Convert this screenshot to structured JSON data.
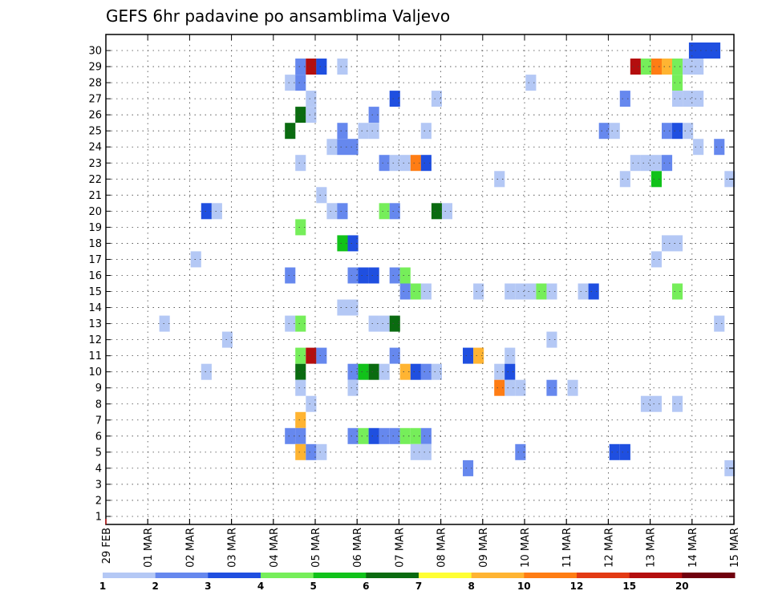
{
  "chart_data": {
    "type": "heatmap",
    "title": "GEFS 6hr padavine po ansamblima Valjevo",
    "x_tick_labels": [
      "29 FEB",
      "01 MAR",
      "02 MAR",
      "03 MAR",
      "04 MAR",
      "05 MAR",
      "06 MAR",
      "07 MAR",
      "08 MAR",
      "09 MAR",
      "10 MAR",
      "11 MAR",
      "12 MAR",
      "13 MAR",
      "14 MAR",
      "15 MAR"
    ],
    "x_range_days": [
      0,
      15
    ],
    "y_tick_labels": [
      "1",
      "2",
      "3",
      "4",
      "5",
      "6",
      "7",
      "8",
      "9",
      "10",
      "11",
      "12",
      "13",
      "14",
      "15",
      "16",
      "17",
      "18",
      "19",
      "20",
      "21",
      "22",
      "23",
      "24",
      "25",
      "26",
      "27",
      "28",
      "29",
      "30"
    ],
    "y_range": [
      0,
      30
    ],
    "grid": true,
    "colorbar": {
      "levels": [
        "1",
        "2",
        "3",
        "4",
        "5",
        "6",
        "7",
        "8",
        "10",
        "12",
        "15",
        "20"
      ],
      "colors": [
        "#b4c8f5",
        "#6688ee",
        "#1f4fe0",
        "#76ee5a",
        "#11c21a",
        "#0a6b10",
        "#ffff33",
        "#ffb432",
        "#ff7d14",
        "#e33a14",
        "#b40e0e",
        "#70000e"
      ]
    },
    "cells": [
      {
        "m": 30,
        "d": 14.05,
        "c": 3
      },
      {
        "m": 30,
        "d": 14.3,
        "c": 3
      },
      {
        "m": 30,
        "d": 14.55,
        "c": 3
      },
      {
        "m": 29,
        "d": 4.65,
        "c": 2
      },
      {
        "m": 29,
        "d": 4.9,
        "c": 11
      },
      {
        "m": 29,
        "d": 5.15,
        "c": 3
      },
      {
        "m": 29,
        "d": 5.65,
        "c": 1
      },
      {
        "m": 29,
        "d": 12.65,
        "c": 11
      },
      {
        "m": 29,
        "d": 12.9,
        "c": 4
      },
      {
        "m": 29,
        "d": 13.15,
        "c": 9
      },
      {
        "m": 29,
        "d": 13.4,
        "c": 8
      },
      {
        "m": 29,
        "d": 13.65,
        "c": 4
      },
      {
        "m": 29,
        "d": 13.9,
        "c": 1
      },
      {
        "m": 29,
        "d": 14.15,
        "c": 1
      },
      {
        "m": 28,
        "d": 4.4,
        "c": 1
      },
      {
        "m": 28,
        "d": 4.65,
        "c": 2
      },
      {
        "m": 28,
        "d": 10.15,
        "c": 1
      },
      {
        "m": 28,
        "d": 13.65,
        "c": 4
      },
      {
        "m": 27,
        "d": 4.9,
        "c": 1
      },
      {
        "m": 27,
        "d": 6.9,
        "c": 3
      },
      {
        "m": 27,
        "d": 7.9,
        "c": 1
      },
      {
        "m": 27,
        "d": 12.4,
        "c": 2
      },
      {
        "m": 27,
        "d": 13.65,
        "c": 1
      },
      {
        "m": 27,
        "d": 13.9,
        "c": 1
      },
      {
        "m": 27,
        "d": 14.15,
        "c": 1
      },
      {
        "m": 26,
        "d": 4.65,
        "c": 6
      },
      {
        "m": 26,
        "d": 4.9,
        "c": 1
      },
      {
        "m": 26,
        "d": 6.4,
        "c": 2
      },
      {
        "m": 25,
        "d": 4.4,
        "c": 6
      },
      {
        "m": 25,
        "d": 5.65,
        "c": 2
      },
      {
        "m": 25,
        "d": 6.15,
        "c": 1
      },
      {
        "m": 25,
        "d": 6.4,
        "c": 1
      },
      {
        "m": 25,
        "d": 7.65,
        "c": 1
      },
      {
        "m": 25,
        "d": 11.9,
        "c": 2
      },
      {
        "m": 25,
        "d": 12.15,
        "c": 1
      },
      {
        "m": 25,
        "d": 13.4,
        "c": 2
      },
      {
        "m": 25,
        "d": 13.65,
        "c": 3
      },
      {
        "m": 25,
        "d": 13.9,
        "c": 1
      },
      {
        "m": 24,
        "d": 5.4,
        "c": 1
      },
      {
        "m": 24,
        "d": 5.65,
        "c": 2
      },
      {
        "m": 24,
        "d": 5.9,
        "c": 2
      },
      {
        "m": 24,
        "d": 14.15,
        "c": 1
      },
      {
        "m": 24,
        "d": 14.65,
        "c": 2
      },
      {
        "m": 23,
        "d": 4.65,
        "c": 1
      },
      {
        "m": 23,
        "d": 6.65,
        "c": 2
      },
      {
        "m": 23,
        "d": 6.9,
        "c": 1
      },
      {
        "m": 23,
        "d": 7.15,
        "c": 1
      },
      {
        "m": 23,
        "d": 7.4,
        "c": 9
      },
      {
        "m": 23,
        "d": 7.65,
        "c": 3
      },
      {
        "m": 23,
        "d": 12.65,
        "c": 1
      },
      {
        "m": 23,
        "d": 12.9,
        "c": 1
      },
      {
        "m": 23,
        "d": 13.15,
        "c": 1
      },
      {
        "m": 23,
        "d": 13.4,
        "c": 2
      },
      {
        "m": 22,
        "d": 9.4,
        "c": 1
      },
      {
        "m": 22,
        "d": 12.4,
        "c": 1
      },
      {
        "m": 22,
        "d": 13.15,
        "c": 5
      },
      {
        "m": 22,
        "d": 14.9,
        "c": 1
      },
      {
        "m": 21,
        "d": 5.15,
        "c": 1
      },
      {
        "m": 20,
        "d": 2.4,
        "c": 3
      },
      {
        "m": 20,
        "d": 2.65,
        "c": 1
      },
      {
        "m": 20,
        "d": 5.4,
        "c": 1
      },
      {
        "m": 20,
        "d": 5.65,
        "c": 2
      },
      {
        "m": 20,
        "d": 6.65,
        "c": 4
      },
      {
        "m": 20,
        "d": 6.9,
        "c": 2
      },
      {
        "m": 20,
        "d": 7.9,
        "c": 6
      },
      {
        "m": 20,
        "d": 8.15,
        "c": 1
      },
      {
        "m": 19,
        "d": 4.65,
        "c": 4
      },
      {
        "m": 18,
        "d": 5.65,
        "c": 5
      },
      {
        "m": 18,
        "d": 5.9,
        "c": 3
      },
      {
        "m": 18,
        "d": 13.4,
        "c": 1
      },
      {
        "m": 18,
        "d": 13.65,
        "c": 1
      },
      {
        "m": 17,
        "d": 2.15,
        "c": 1
      },
      {
        "m": 17,
        "d": 13.15,
        "c": 1
      },
      {
        "m": 16,
        "d": 4.4,
        "c": 2
      },
      {
        "m": 16,
        "d": 5.9,
        "c": 2
      },
      {
        "m": 16,
        "d": 6.15,
        "c": 3
      },
      {
        "m": 16,
        "d": 6.4,
        "c": 3
      },
      {
        "m": 16,
        "d": 6.9,
        "c": 2
      },
      {
        "m": 16,
        "d": 7.15,
        "c": 4
      },
      {
        "m": 15,
        "d": 7.15,
        "c": 2
      },
      {
        "m": 15,
        "d": 7.4,
        "c": 4
      },
      {
        "m": 15,
        "d": 7.65,
        "c": 1
      },
      {
        "m": 15,
        "d": 8.9,
        "c": 1
      },
      {
        "m": 15,
        "d": 9.65,
        "c": 1
      },
      {
        "m": 15,
        "d": 9.9,
        "c": 1
      },
      {
        "m": 15,
        "d": 10.15,
        "c": 1
      },
      {
        "m": 15,
        "d": 10.4,
        "c": 4
      },
      {
        "m": 15,
        "d": 10.65,
        "c": 1
      },
      {
        "m": 15,
        "d": 11.4,
        "c": 1
      },
      {
        "m": 15,
        "d": 11.65,
        "c": 3
      },
      {
        "m": 15,
        "d": 13.65,
        "c": 4
      },
      {
        "m": 14,
        "d": 5.65,
        "c": 1
      },
      {
        "m": 14,
        "d": 5.9,
        "c": 1
      },
      {
        "m": 13,
        "d": 1.4,
        "c": 1
      },
      {
        "m": 13,
        "d": 4.4,
        "c": 1
      },
      {
        "m": 13,
        "d": 4.65,
        "c": 4
      },
      {
        "m": 13,
        "d": 6.4,
        "c": 1
      },
      {
        "m": 13,
        "d": 6.65,
        "c": 1
      },
      {
        "m": 13,
        "d": 6.9,
        "c": 6
      },
      {
        "m": 13,
        "d": 14.65,
        "c": 1
      },
      {
        "m": 12,
        "d": 2.9,
        "c": 1
      },
      {
        "m": 12,
        "d": 10.65,
        "c": 1
      },
      {
        "m": 11,
        "d": 4.65,
        "c": 4
      },
      {
        "m": 11,
        "d": 4.9,
        "c": 11
      },
      {
        "m": 11,
        "d": 5.15,
        "c": 2
      },
      {
        "m": 11,
        "d": 6.9,
        "c": 2
      },
      {
        "m": 11,
        "d": 8.65,
        "c": 3
      },
      {
        "m": 11,
        "d": 8.9,
        "c": 8
      },
      {
        "m": 11,
        "d": 9.65,
        "c": 1
      },
      {
        "m": 10,
        "d": 2.4,
        "c": 1
      },
      {
        "m": 10,
        "d": 4.65,
        "c": 6
      },
      {
        "m": 10,
        "d": 5.9,
        "c": 2
      },
      {
        "m": 10,
        "d": 6.15,
        "c": 5
      },
      {
        "m": 10,
        "d": 6.4,
        "c": 6
      },
      {
        "m": 10,
        "d": 6.65,
        "c": 1
      },
      {
        "m": 10,
        "d": 7.15,
        "c": 8
      },
      {
        "m": 10,
        "d": 7.4,
        "c": 3
      },
      {
        "m": 10,
        "d": 7.65,
        "c": 2
      },
      {
        "m": 10,
        "d": 7.9,
        "c": 1
      },
      {
        "m": 10,
        "d": 9.4,
        "c": 1
      },
      {
        "m": 10,
        "d": 9.65,
        "c": 3
      },
      {
        "m": 9,
        "d": 4.65,
        "c": 1
      },
      {
        "m": 9,
        "d": 5.9,
        "c": 1
      },
      {
        "m": 9,
        "d": 9.4,
        "c": 9
      },
      {
        "m": 9,
        "d": 9.65,
        "c": 1
      },
      {
        "m": 9,
        "d": 9.9,
        "c": 1
      },
      {
        "m": 9,
        "d": 10.65,
        "c": 2
      },
      {
        "m": 9,
        "d": 11.15,
        "c": 1
      },
      {
        "m": 8,
        "d": 4.9,
        "c": 1
      },
      {
        "m": 8,
        "d": 12.9,
        "c": 1
      },
      {
        "m": 8,
        "d": 13.15,
        "c": 1
      },
      {
        "m": 8,
        "d": 13.65,
        "c": 1
      },
      {
        "m": 7,
        "d": 4.65,
        "c": 8
      },
      {
        "m": 6,
        "d": 4.4,
        "c": 2
      },
      {
        "m": 6,
        "d": 4.65,
        "c": 2
      },
      {
        "m": 6,
        "d": 5.9,
        "c": 2
      },
      {
        "m": 6,
        "d": 6.15,
        "c": 4
      },
      {
        "m": 6,
        "d": 6.4,
        "c": 3
      },
      {
        "m": 6,
        "d": 6.65,
        "c": 2
      },
      {
        "m": 6,
        "d": 6.9,
        "c": 2
      },
      {
        "m": 6,
        "d": 7.15,
        "c": 4
      },
      {
        "m": 6,
        "d": 7.4,
        "c": 4
      },
      {
        "m": 6,
        "d": 7.65,
        "c": 2
      },
      {
        "m": 5,
        "d": 4.65,
        "c": 8
      },
      {
        "m": 5,
        "d": 4.9,
        "c": 2
      },
      {
        "m": 5,
        "d": 5.15,
        "c": 1
      },
      {
        "m": 5,
        "d": 7.4,
        "c": 1
      },
      {
        "m": 5,
        "d": 7.65,
        "c": 1
      },
      {
        "m": 5,
        "d": 9.9,
        "c": 2
      },
      {
        "m": 5,
        "d": 12.15,
        "c": 3
      },
      {
        "m": 5,
        "d": 12.4,
        "c": 3
      },
      {
        "m": 4,
        "d": 8.65,
        "c": 2
      },
      {
        "m": 4,
        "d": 14.9,
        "c": 1
      }
    ]
  }
}
